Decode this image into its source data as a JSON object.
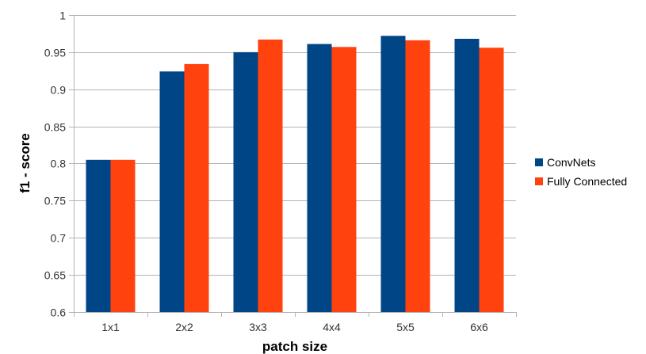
{
  "chart_data": {
    "type": "bar",
    "categories": [
      "1x1",
      "2x2",
      "3x3",
      "4x4",
      "5x5",
      "6x6"
    ],
    "series": [
      {
        "name": "ConvNets",
        "values": [
          0.805,
          0.924,
          0.95,
          0.961,
          0.972,
          0.968
        ],
        "color": "#004586"
      },
      {
        "name": "Fully Connected",
        "values": [
          0.805,
          0.934,
          0.967,
          0.957,
          0.966,
          0.956
        ],
        "color": "#ff420e"
      }
    ],
    "xlabel": "patch size",
    "ylabel": "f1 - score",
    "ylim": [
      0.6,
      1
    ],
    "yticks": [
      "0.6",
      "0.65",
      "0.7",
      "0.75",
      "0.8",
      "0.85",
      "0.9",
      "0.95",
      "1"
    ],
    "grid": true,
    "legend_position": "right"
  }
}
